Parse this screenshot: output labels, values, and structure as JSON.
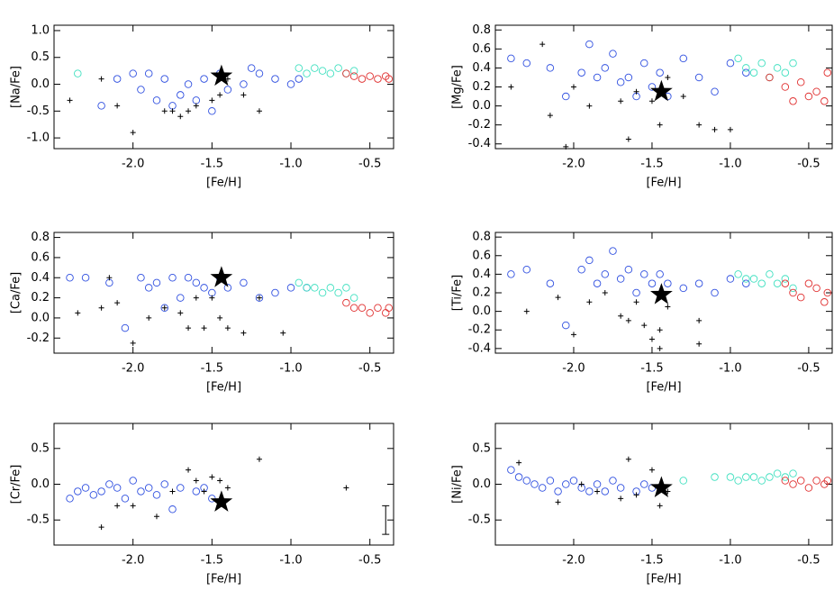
{
  "chart_data": [
    {
      "type": "scatter",
      "x_label": "[Fe/H]",
      "y_label": "[Na/Fe]",
      "xlim": [
        -2.5,
        -0.35
      ],
      "xticks": [
        {
          "value": -2.0,
          "label": "-2.0"
        },
        -1.5,
        {
          "value": -1.0,
          "label": "-1.0"
        },
        -0.5
      ],
      "ylim": [
        -1.2,
        1.1
      ],
      "yticks": [
        {
          "value": -1.0,
          "label": "-1.0"
        },
        -0.5,
        {
          "value": 0.0,
          "label": "0.0"
        },
        0.5,
        {
          "value": 1.0,
          "label": "1.0"
        }
      ],
      "series": [
        {
          "marker": "circle",
          "color": "#3050e0",
          "x": [
            -2.2,
            -2.1,
            -2.0,
            -1.95,
            -1.9,
            -1.85,
            -1.8,
            -1.75,
            -1.7,
            -1.65,
            -1.6,
            -1.55,
            -1.5,
            -1.45,
            -1.4,
            -1.3,
            -1.25,
            -1.2,
            -1.1,
            -1.0,
            -0.95
          ],
          "y": [
            -0.4,
            0.1,
            0.2,
            -0.1,
            0.2,
            -0.3,
            0.1,
            -0.4,
            -0.2,
            0.0,
            -0.3,
            0.1,
            -0.5,
            0.2,
            -0.1,
            0.0,
            0.3,
            0.2,
            0.1,
            0.0,
            0.1
          ]
        },
        {
          "marker": "circle",
          "color": "#40e0c0",
          "x": [
            -2.35,
            -0.95,
            -0.9,
            -0.85,
            -0.8,
            -0.75,
            -0.7,
            -0.65,
            -0.6
          ],
          "y": [
            0.2,
            0.3,
            0.2,
            0.3,
            0.25,
            0.2,
            0.3,
            0.2,
            0.25
          ]
        },
        {
          "marker": "circle",
          "color": "#e03030",
          "x": [
            -0.65,
            -0.6,
            -0.55,
            -0.5,
            -0.45,
            -0.4,
            -0.38
          ],
          "y": [
            0.2,
            0.15,
            0.1,
            0.15,
            0.1,
            0.15,
            0.1
          ]
        },
        {
          "marker": "plus",
          "color": "#000000",
          "x": [
            -2.4,
            -2.2,
            -2.1,
            -2.0,
            -1.8,
            -1.75,
            -1.7,
            -1.65,
            -1.6,
            -1.5,
            -1.45,
            -1.4,
            -1.3,
            -1.2
          ],
          "y": [
            -0.3,
            0.1,
            -0.4,
            -0.9,
            -0.5,
            -0.5,
            -0.6,
            -0.5,
            -0.4,
            -0.3,
            -0.2,
            0.1,
            -0.2,
            -0.5
          ]
        },
        {
          "marker": "star",
          "color": "#000000",
          "x": [
            -1.44
          ],
          "y": [
            0.15
          ]
        }
      ]
    },
    {
      "type": "scatter",
      "x_label": "[Fe/H]",
      "y_label": "[Mg/Fe]",
      "xlim": [
        -2.5,
        -0.35
      ],
      "xticks": [
        {
          "value": -2.0,
          "label": "-2.0"
        },
        -1.5,
        {
          "value": -1.0,
          "label": "-1.0"
        },
        -0.5
      ],
      "ylim": [
        -0.45,
        0.85
      ],
      "yticks": [
        -0.4,
        -0.2,
        {
          "value": 0.0,
          "label": "0.0"
        },
        0.2,
        0.4,
        0.6,
        0.8
      ],
      "series": [
        {
          "marker": "circle",
          "color": "#3050e0",
          "x": [
            -2.4,
            -2.3,
            -2.15,
            -2.05,
            -1.95,
            -1.9,
            -1.85,
            -1.8,
            -1.75,
            -1.7,
            -1.65,
            -1.6,
            -1.55,
            -1.5,
            -1.45,
            -1.4,
            -1.3,
            -1.2,
            -1.1,
            -1.0,
            -0.9
          ],
          "y": [
            0.5,
            0.45,
            0.4,
            0.1,
            0.35,
            0.65,
            0.3,
            0.4,
            0.55,
            0.25,
            0.3,
            0.1,
            0.45,
            0.2,
            0.35,
            0.1,
            0.5,
            0.3,
            0.15,
            0.45,
            0.35
          ]
        },
        {
          "marker": "circle",
          "color": "#40e0c0",
          "x": [
            -0.95,
            -0.9,
            -0.85,
            -0.8,
            -0.75,
            -0.7,
            -0.65,
            -0.6
          ],
          "y": [
            0.5,
            0.4,
            0.35,
            0.45,
            0.3,
            0.4,
            0.35,
            0.45
          ]
        },
        {
          "marker": "circle",
          "color": "#e03030",
          "x": [
            -0.75,
            -0.65,
            -0.6,
            -0.55,
            -0.5,
            -0.45,
            -0.4,
            -0.38
          ],
          "y": [
            0.3,
            0.2,
            0.05,
            0.25,
            0.1,
            0.15,
            0.05,
            0.35
          ]
        },
        {
          "marker": "plus",
          "color": "#000000",
          "x": [
            -2.4,
            -2.2,
            -2.15,
            -2.05,
            -2.0,
            -1.9,
            -1.7,
            -1.65,
            -1.6,
            -1.5,
            -1.45,
            -1.4,
            -1.3,
            -1.2,
            -1.1,
            -1.0
          ],
          "y": [
            0.2,
            0.65,
            -0.1,
            -0.43,
            0.2,
            0.0,
            0.05,
            -0.35,
            0.15,
            0.05,
            -0.2,
            0.3,
            0.1,
            -0.2,
            -0.25,
            -0.25
          ]
        },
        {
          "marker": "star",
          "color": "#000000",
          "x": [
            -1.44
          ],
          "y": [
            0.15
          ]
        }
      ]
    },
    {
      "type": "scatter",
      "x_label": "[Fe/H]",
      "y_label": "[Ca/Fe]",
      "xlim": [
        -2.5,
        -0.35
      ],
      "xticks": [
        {
          "value": -2.0,
          "label": "-2.0"
        },
        -1.5,
        {
          "value": -1.0,
          "label": "-1.0"
        },
        -0.5
      ],
      "ylim": [
        -0.35,
        0.85
      ],
      "yticks": [
        -0.2,
        {
          "value": 0.0,
          "label": "0.0"
        },
        0.2,
        0.4,
        0.6,
        0.8
      ],
      "series": [
        {
          "marker": "circle",
          "color": "#3050e0",
          "x": [
            -2.4,
            -2.3,
            -2.15,
            -2.05,
            -1.95,
            -1.9,
            -1.85,
            -1.8,
            -1.75,
            -1.7,
            -1.65,
            -1.6,
            -1.55,
            -1.5,
            -1.45,
            -1.4,
            -1.3,
            -1.2,
            -1.1,
            -1.0,
            -0.9
          ],
          "y": [
            0.4,
            0.4,
            0.35,
            -0.1,
            0.4,
            0.3,
            0.35,
            0.1,
            0.4,
            0.2,
            0.4,
            0.35,
            0.3,
            0.25,
            0.4,
            0.3,
            0.35,
            0.2,
            0.25,
            0.3,
            0.3
          ]
        },
        {
          "marker": "circle",
          "color": "#40e0c0",
          "x": [
            -0.95,
            -0.9,
            -0.85,
            -0.8,
            -0.75,
            -0.7,
            -0.65,
            -0.6
          ],
          "y": [
            0.35,
            0.3,
            0.3,
            0.25,
            0.3,
            0.25,
            0.3,
            0.2
          ]
        },
        {
          "marker": "circle",
          "color": "#e03030",
          "x": [
            -0.65,
            -0.6,
            -0.55,
            -0.5,
            -0.45,
            -0.4,
            -0.38
          ],
          "y": [
            0.15,
            0.1,
            0.1,
            0.05,
            0.1,
            0.05,
            0.1
          ]
        },
        {
          "marker": "plus",
          "color": "#000000",
          "x": [
            -2.35,
            -2.2,
            -2.15,
            -2.1,
            -2.0,
            -1.9,
            -1.8,
            -1.7,
            -1.65,
            -1.6,
            -1.55,
            -1.5,
            -1.45,
            -1.4,
            -1.3,
            -1.2,
            -1.05
          ],
          "y": [
            0.05,
            0.1,
            0.4,
            0.15,
            -0.25,
            0.0,
            0.1,
            0.05,
            -0.1,
            0.2,
            -0.1,
            0.2,
            0.0,
            -0.1,
            -0.15,
            0.2,
            -0.15
          ]
        },
        {
          "marker": "star",
          "color": "#000000",
          "x": [
            -1.44
          ],
          "y": [
            0.4
          ]
        }
      ]
    },
    {
      "type": "scatter",
      "x_label": "[Fe/H]",
      "y_label": "[Ti/Fe]",
      "xlim": [
        -2.5,
        -0.35
      ],
      "xticks": [
        {
          "value": -2.0,
          "label": "-2.0"
        },
        -1.5,
        {
          "value": -1.0,
          "label": "-1.0"
        },
        -0.5
      ],
      "ylim": [
        -0.45,
        0.85
      ],
      "yticks": [
        -0.4,
        -0.2,
        {
          "value": 0.0,
          "label": "0.0"
        },
        0.2,
        0.4,
        0.6,
        0.8
      ],
      "series": [
        {
          "marker": "circle",
          "color": "#3050e0",
          "x": [
            -2.4,
            -2.3,
            -2.15,
            -2.05,
            -1.95,
            -1.9,
            -1.85,
            -1.8,
            -1.75,
            -1.7,
            -1.65,
            -1.6,
            -1.55,
            -1.5,
            -1.45,
            -1.4,
            -1.3,
            -1.2,
            -1.1,
            -1.0,
            -0.9
          ],
          "y": [
            0.4,
            0.45,
            0.3,
            -0.15,
            0.45,
            0.55,
            0.3,
            0.4,
            0.65,
            0.35,
            0.45,
            0.2,
            0.4,
            0.3,
            0.4,
            0.3,
            0.25,
            0.3,
            0.2,
            0.35,
            0.3
          ]
        },
        {
          "marker": "circle",
          "color": "#40e0c0",
          "x": [
            -0.95,
            -0.9,
            -0.85,
            -0.8,
            -0.75,
            -0.7,
            -0.65,
            -0.6
          ],
          "y": [
            0.4,
            0.35,
            0.35,
            0.3,
            0.4,
            0.3,
            0.35,
            0.25
          ]
        },
        {
          "marker": "circle",
          "color": "#e03030",
          "x": [
            -0.65,
            -0.6,
            -0.55,
            -0.5,
            -0.45,
            -0.4,
            -0.38
          ],
          "y": [
            0.3,
            0.2,
            0.15,
            0.3,
            0.25,
            0.1,
            0.2
          ]
        },
        {
          "marker": "plus",
          "color": "#000000",
          "x": [
            -2.3,
            -2.1,
            -2.0,
            -1.9,
            -1.8,
            -1.7,
            -1.65,
            -1.6,
            -1.55,
            -1.5,
            -1.45,
            -1.45,
            -1.4,
            -1.2,
            -1.2
          ],
          "y": [
            0.0,
            0.15,
            -0.25,
            0.1,
            0.2,
            -0.05,
            -0.1,
            0.1,
            -0.15,
            -0.3,
            -0.4,
            -0.2,
            0.05,
            -0.1,
            -0.35
          ]
        },
        {
          "marker": "star",
          "color": "#000000",
          "x": [
            -1.44
          ],
          "y": [
            0.18
          ]
        }
      ]
    },
    {
      "type": "scatter",
      "x_label": "[Fe/H]",
      "y_label": "[Cr/Fe]",
      "xlim": [
        -2.5,
        -0.35
      ],
      "xticks": [
        {
          "value": -2.0,
          "label": "-2.0"
        },
        -1.5,
        {
          "value": -1.0,
          "label": "-1.0"
        },
        -0.5
      ],
      "ylim": [
        -0.85,
        0.85
      ],
      "yticks": [
        -0.5,
        {
          "value": 0.0,
          "label": "0.0"
        },
        0.5
      ],
      "series": [
        {
          "marker": "circle",
          "color": "#3050e0",
          "x": [
            -2.4,
            -2.35,
            -2.3,
            -2.25,
            -2.2,
            -2.15,
            -2.1,
            -2.05,
            -2.0,
            -1.95,
            -1.9,
            -1.85,
            -1.8,
            -1.75,
            -1.7,
            -1.6,
            -1.55,
            -1.5
          ],
          "y": [
            -0.2,
            -0.1,
            -0.05,
            -0.15,
            -0.1,
            0.0,
            -0.05,
            -0.2,
            0.05,
            -0.1,
            -0.05,
            -0.15,
            0.0,
            -0.35,
            -0.05,
            -0.1,
            -0.05,
            -0.2
          ]
        },
        {
          "marker": "plus",
          "color": "#000000",
          "x": [
            -2.2,
            -2.1,
            -2.0,
            -1.85,
            -1.75,
            -1.65,
            -1.6,
            -1.55,
            -1.5,
            -1.45,
            -1.4,
            -1.2,
            -0.65
          ],
          "y": [
            -0.6,
            -0.3,
            -0.3,
            -0.45,
            -0.1,
            0.2,
            0.05,
            -0.1,
            0.1,
            0.05,
            -0.05,
            0.35,
            -0.05
          ]
        },
        {
          "marker": "star",
          "color": "#000000",
          "x": [
            -1.44
          ],
          "y": [
            -0.25
          ]
        }
      ],
      "error_bar": {
        "x": -0.4,
        "y": -0.5,
        "error": 0.2
      }
    },
    {
      "type": "scatter",
      "x_label": "[Fe/H]",
      "y_label": "[Ni/Fe]",
      "xlim": [
        -2.5,
        -0.35
      ],
      "xticks": [
        {
          "value": -2.0,
          "label": "-2.0"
        },
        -1.5,
        {
          "value": -1.0,
          "label": "-1.0"
        },
        -0.5
      ],
      "ylim": [
        -0.85,
        0.85
      ],
      "yticks": [
        -0.5,
        {
          "value": 0.0,
          "label": "0.0"
        },
        0.5
      ],
      "series": [
        {
          "marker": "circle",
          "color": "#3050e0",
          "x": [
            -2.4,
            -2.35,
            -2.3,
            -2.25,
            -2.2,
            -2.15,
            -2.1,
            -2.05,
            -2.0,
            -1.95,
            -1.9,
            -1.85,
            -1.8,
            -1.75,
            -1.7,
            -1.6,
            -1.55,
            -1.5
          ],
          "y": [
            0.2,
            0.1,
            0.05,
            0.0,
            -0.05,
            0.05,
            -0.1,
            0.0,
            0.05,
            -0.05,
            -0.1,
            0.0,
            -0.1,
            0.05,
            -0.05,
            -0.1,
            0.0,
            -0.05
          ]
        },
        {
          "marker": "circle",
          "color": "#40e0c0",
          "x": [
            -1.3,
            -1.1,
            -1.0,
            -0.95,
            -0.9,
            -0.85,
            -0.8,
            -0.75,
            -0.7,
            -0.65,
            -0.6
          ],
          "y": [
            0.05,
            0.1,
            0.1,
            0.05,
            0.1,
            0.1,
            0.05,
            0.1,
            0.15,
            0.1,
            0.15
          ]
        },
        {
          "marker": "circle",
          "color": "#e03030",
          "x": [
            -0.65,
            -0.6,
            -0.55,
            -0.5,
            -0.45,
            -0.4,
            -0.38
          ],
          "y": [
            0.05,
            0.0,
            0.05,
            -0.05,
            0.05,
            0.0,
            0.05
          ]
        },
        {
          "marker": "plus",
          "color": "#000000",
          "x": [
            -2.35,
            -2.1,
            -1.95,
            -1.85,
            -1.7,
            -1.65,
            -1.6,
            -1.5,
            -1.45,
            -1.4
          ],
          "y": [
            0.3,
            -0.25,
            0.0,
            -0.1,
            -0.2,
            0.35,
            -0.15,
            0.2,
            -0.3,
            -0.1
          ]
        },
        {
          "marker": "star",
          "color": "#000000",
          "x": [
            -1.44
          ],
          "y": [
            -0.05
          ]
        }
      ]
    }
  ]
}
